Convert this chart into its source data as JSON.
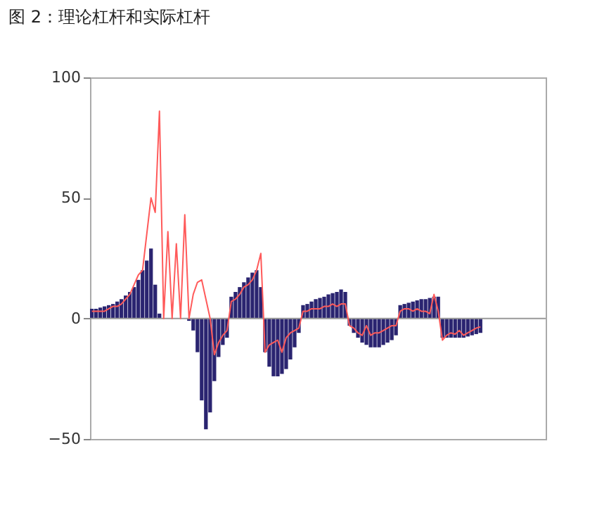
{
  "chart_data": {
    "type": "bar",
    "title": "图 2：理论杠杆和实际杠杆",
    "categories": [
      null,
      null,
      null,
      null,
      null,
      null,
      null,
      null,
      null,
      null,
      null,
      null,
      null,
      null,
      null,
      null,
      null,
      null,
      null,
      null,
      null,
      null,
      null,
      null,
      null,
      null,
      null,
      null,
      null,
      null,
      null,
      null,
      null,
      null,
      null,
      null,
      null,
      null,
      null,
      null,
      null,
      null,
      null,
      null,
      null,
      null,
      null,
      null,
      null,
      null,
      null,
      null,
      null,
      null,
      null,
      null,
      null,
      null,
      null,
      null,
      null,
      null,
      null,
      null,
      null,
      null,
      null,
      null,
      null,
      null,
      null,
      null,
      null,
      null,
      null,
      null,
      null,
      null,
      null,
      null,
      null,
      null,
      null,
      null,
      null,
      null,
      null,
      null,
      null,
      null,
      null,
      null,
      null,
      null,
      null,
      null,
      null,
      null,
      null,
      null,
      null,
      null,
      null,
      null,
      null,
      null,
      null,
      null
    ],
    "series": [
      {
        "color": "#2a2470",
        "values": [
          4,
          4,
          4.5,
          5,
          5.5,
          6,
          7,
          8,
          9.5,
          11,
          13,
          16,
          20,
          24,
          29,
          14,
          2,
          0,
          0,
          0,
          0,
          0,
          0,
          -1,
          -5,
          -14,
          -34,
          -46,
          -39,
          -26,
          -16,
          -11,
          -8,
          9,
          11,
          13,
          15,
          17,
          19,
          20,
          13,
          -14,
          -20,
          -24,
          -24,
          -23,
          -21,
          -17,
          -12,
          -6,
          5.5,
          6,
          7,
          8,
          8.5,
          9,
          10,
          10.5,
          11,
          12,
          11,
          -3,
          -6,
          -8,
          -10,
          -11,
          -12,
          -12,
          -12,
          -11,
          -10,
          -9,
          -7,
          5.5,
          6,
          6.5,
          7,
          7.5,
          8,
          8,
          8.5,
          9,
          9,
          -8,
          -8,
          -8,
          -8,
          -8,
          -8,
          -7.5,
          -7,
          -6.5,
          -6,
          null,
          null,
          null,
          null,
          null,
          null,
          null,
          null,
          null,
          null,
          null,
          null,
          null,
          null,
          null
        ]
      },
      {
        "type": "line",
        "color": "#ff5a5a",
        "values": [
          3,
          3,
          3,
          3,
          4,
          5,
          5,
          6,
          8,
          10,
          14,
          18,
          20,
          35,
          50,
          44,
          86,
          0,
          36,
          0,
          31,
          0,
          43,
          0,
          10,
          15,
          16,
          8,
          0,
          -15,
          -10,
          -7,
          -5,
          7,
          8,
          10,
          13,
          14,
          16,
          20,
          27,
          -14,
          -11,
          -10,
          -9,
          -14,
          -8,
          -6,
          -5,
          -4,
          3,
          3,
          4,
          4,
          4,
          5,
          5,
          6,
          5,
          6,
          6,
          -3,
          -4,
          -6,
          -7,
          -3,
          -7,
          -6,
          -6,
          -5,
          -4,
          -3,
          -3,
          3,
          4,
          4,
          3,
          4,
          3,
          3,
          2,
          10,
          3,
          -9,
          -7,
          -6,
          -6.5,
          -5,
          -7,
          -6,
          -5,
          -4,
          -3.5,
          null,
          null,
          null,
          null,
          null,
          null,
          null,
          null,
          null,
          null,
          null,
          null,
          null,
          null,
          null
        ]
      }
    ],
    "ylim": [
      -50,
      100
    ],
    "yticks": [
      -50,
      0,
      50,
      100
    ],
    "tick_labels": "y",
    "ref_lines": [
      {
        "axis": "y",
        "value": 0,
        "color": "#999999"
      }
    ]
  }
}
